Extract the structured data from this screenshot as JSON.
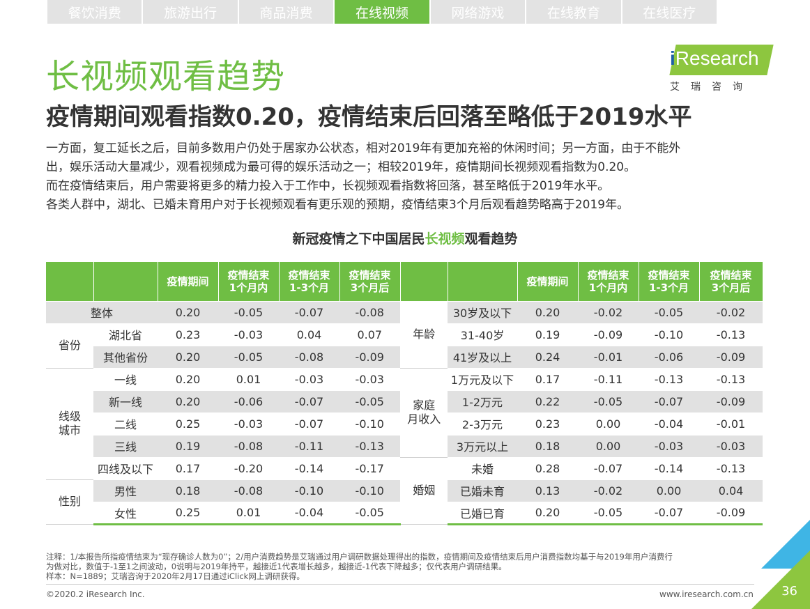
{
  "tabs": [
    {
      "label": "餐饮消费",
      "active": false
    },
    {
      "label": "旅游出行",
      "active": false
    },
    {
      "label": "商品消费",
      "active": false
    },
    {
      "label": "在线视频",
      "active": true
    },
    {
      "label": "网络游戏",
      "active": false
    },
    {
      "label": "在线教育",
      "active": false
    },
    {
      "label": "在线医疗",
      "active": false
    }
  ],
  "title": "长视频观看趋势",
  "subtitle": "疫情期间观看指数0.20，疫情结束后回落至略低于2019水平",
  "logo": {
    "i": "i",
    "name": "Research",
    "sub": "艾瑞咨询"
  },
  "paragraph": [
    "一方面，复工延长之后，目前多数用户仍处于居家办公状态，相对2019年有更加充裕的休闲时间；另一方面，由于不能外",
    "出，娱乐活动大量减少，观看视频成为最可得的娱乐活动之一；相较2019年，疫情期间长视频观看指数为0.20。",
    "而在疫情结束后，用户需要将更多的精力投入于工作中，长视频观看指数将回落，甚至略低于2019年水平。",
    "各类人群中，湖北、已婚未育用户对于长视频观看有更乐观的预期，疫情结束3个月后观看趋势略高于2019年。"
  ],
  "table_caption": {
    "pre": "新冠疫情之下中国居民",
    "highlight": "长视频",
    "post": "观看趋势"
  },
  "table": {
    "headers": [
      "疫情期间",
      "疫情结束1个月内",
      "疫情结束1-3个月",
      "疫情结束3个月后"
    ],
    "header_lines": [
      [
        "疫情期间"
      ],
      [
        "疫情结束",
        "1个月内"
      ],
      [
        "疫情结束",
        "1-3个月"
      ],
      [
        "疫情结束",
        "3个月后"
      ]
    ],
    "left": {
      "overall": {
        "label": "整体",
        "values": [
          "0.20",
          "-0.05",
          "-0.07",
          "-0.08"
        ]
      },
      "groups": [
        {
          "category": "省份",
          "rows": [
            {
              "label": "湖北省",
              "values": [
                "0.23",
                "-0.03",
                "0.04",
                "0.07"
              ]
            },
            {
              "label": "其他省份",
              "values": [
                "0.20",
                "-0.05",
                "-0.08",
                "-0.09"
              ]
            }
          ]
        },
        {
          "category": "线级城市",
          "category_lines": [
            "线级",
            "城市"
          ],
          "rows": [
            {
              "label": "一线",
              "values": [
                "0.20",
                "0.01",
                "-0.03",
                "-0.03"
              ]
            },
            {
              "label": "新一线",
              "values": [
                "0.20",
                "-0.06",
                "-0.07",
                "-0.05"
              ]
            },
            {
              "label": "二线",
              "values": [
                "0.25",
                "-0.03",
                "-0.07",
                "-0.10"
              ]
            },
            {
              "label": "三线",
              "values": [
                "0.19",
                "-0.08",
                "-0.11",
                "-0.13"
              ]
            },
            {
              "label": "四线及以下",
              "values": [
                "0.17",
                "-0.20",
                "-0.14",
                "-0.17"
              ]
            }
          ]
        },
        {
          "category": "性别",
          "rows": [
            {
              "label": "男性",
              "values": [
                "0.18",
                "-0.08",
                "-0.10",
                "-0.10"
              ]
            },
            {
              "label": "女性",
              "values": [
                "0.25",
                "0.01",
                "-0.04",
                "-0.05"
              ]
            }
          ]
        }
      ]
    },
    "right": {
      "groups": [
        {
          "category": "年龄",
          "rows": [
            {
              "label": "30岁及以下",
              "values": [
                "0.20",
                "-0.02",
                "-0.05",
                "-0.02"
              ]
            },
            {
              "label": "31-40岁",
              "values": [
                "0.19",
                "-0.09",
                "-0.10",
                "-0.13"
              ]
            },
            {
              "label": "41岁及以上",
              "values": [
                "0.24",
                "-0.01",
                "-0.06",
                "-0.09"
              ]
            }
          ]
        },
        {
          "category": "家庭月收入",
          "category_lines": [
            "家庭",
            "月收入"
          ],
          "rows": [
            {
              "label": "1万元及以下",
              "values": [
                "0.17",
                "-0.11",
                "-0.13",
                "-0.13"
              ]
            },
            {
              "label": "1-2万元",
              "values": [
                "0.22",
                "-0.05",
                "-0.07",
                "-0.09"
              ]
            },
            {
              "label": "2-3万元",
              "values": [
                "0.23",
                "0.00",
                "-0.04",
                "-0.01"
              ]
            },
            {
              "label": "3万元以上",
              "values": [
                "0.18",
                "0.00",
                "-0.03",
                "-0.03"
              ]
            }
          ]
        },
        {
          "category": "婚姻",
          "rows": [
            {
              "label": "未婚",
              "values": [
                "0.28",
                "-0.07",
                "-0.14",
                "-0.13"
              ]
            },
            {
              "label": "已婚未育",
              "values": [
                "0.13",
                "-0.02",
                "0.00",
                "0.04"
              ]
            },
            {
              "label": "已婚已育",
              "values": [
                "0.20",
                "-0.05",
                "-0.07",
                "-0.09"
              ]
            }
          ]
        }
      ]
    }
  },
  "notes": [
    "注释：1/本报告所指疫情结束为“现存确诊人数为0”；2/用户消费趋势是艾瑞通过用户调研数据处理得出的指数，疫情期间及疫情结束后用户消费指数均基于与2019年用户消费行",
    "为做对比，数值于-1至1之间波动，0说明与2019年持平，越接近1代表增长越多，越接近-1代表下降越多；仅代表用户调研结果。",
    "样本：N=1889；艾瑞咨询于2020年2月17日通过iClick网上调研获得。"
  ],
  "footer": {
    "copyright": "©2020.2 iResearch Inc.",
    "website": "www.iresearch.com.cn",
    "page_number": "36"
  },
  "colors": {
    "accent": "#6fbe44",
    "row_shade": "#e1e1e1",
    "corner_blue": "#3fb5e5",
    "corner_green": "#8dc63f"
  }
}
